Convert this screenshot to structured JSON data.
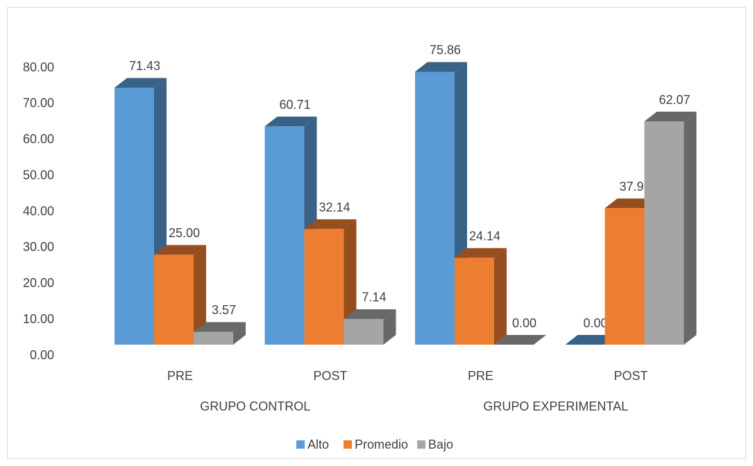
{
  "chart_data": {
    "type": "bar3d",
    "categories": [
      "PRE",
      "POST",
      "PRE",
      "POST"
    ],
    "groups": [
      "GRUPO CONTROL",
      "GRUPO EXPERIMENTAL"
    ],
    "series": [
      {
        "name": "Alto",
        "color": "#5b9bd5",
        "values": [
          71.43,
          60.71,
          75.86,
          0
        ],
        "value_labels": [
          "71.43",
          "60.71",
          "75.86",
          "0.00"
        ]
      },
      {
        "name": "Promedio",
        "color": "#ed7d31",
        "values": [
          25,
          32.14,
          24.14,
          37.93
        ],
        "value_labels": [
          "25.00",
          "32.14",
          "24.14",
          "37.93"
        ]
      },
      {
        "name": "Bajo",
        "color": "#a5a5a5",
        "values": [
          3.57,
          7.14,
          0,
          62.07
        ],
        "value_labels": [
          "3.57",
          "7.14",
          "0.00",
          "62.07"
        ]
      }
    ],
    "ylim": [
      0,
      80
    ],
    "yticks": [
      {
        "value": 0,
        "label": "0.00"
      },
      {
        "value": 10,
        "label": "10.00"
      },
      {
        "value": 20,
        "label": "20.00"
      },
      {
        "value": 30,
        "label": "30.00"
      },
      {
        "value": 40,
        "label": "40.00"
      },
      {
        "value": 50,
        "label": "50.00"
      },
      {
        "value": 60,
        "label": "60.00"
      },
      {
        "value": 70,
        "label": "70.00"
      },
      {
        "value": 80,
        "label": "80.00"
      }
    ],
    "legend": "bottom"
  }
}
